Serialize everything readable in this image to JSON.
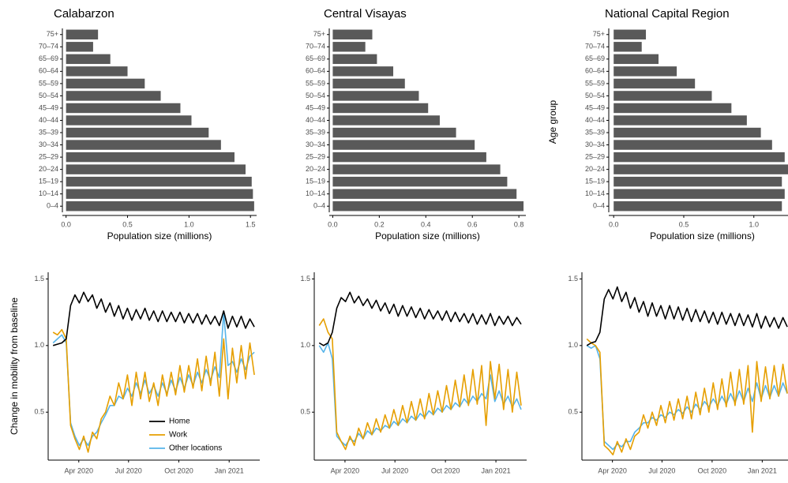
{
  "chart_data": [
    {
      "type": "bar",
      "orientation": "horizontal",
      "title": "Calabarzon",
      "xlabel": "Population size (millions)",
      "color": "#595959",
      "categories": [
        "0–4",
        "10–14",
        "15–19",
        "20–24",
        "25–29",
        "30–34",
        "35–39",
        "40–44",
        "45–49",
        "50–54",
        "55–59",
        "60–64",
        "65–69",
        "70–74",
        "75+"
      ],
      "values": [
        1.53,
        1.52,
        1.51,
        1.46,
        1.37,
        1.26,
        1.16,
        1.02,
        0.93,
        0.77,
        0.64,
        0.5,
        0.36,
        0.22,
        0.26
      ],
      "xlim": [
        -0.03,
        1.55
      ],
      "xticks": [
        {
          "value": 0,
          "label": "0.0"
        },
        0.5,
        {
          "value": 1,
          "label": "1.0"
        },
        1.5
      ]
    },
    {
      "type": "bar",
      "orientation": "horizontal",
      "title": "Central Visayas",
      "xlabel": "Population size (millions)",
      "color": "#595959",
      "categories": [
        "0–4",
        "10–14",
        "15–19",
        "20–24",
        "25–29",
        "30–34",
        "35–39",
        "40–44",
        "45–49",
        "50–54",
        "55–59",
        "60–64",
        "65–69",
        "70–74",
        "75+"
      ],
      "values": [
        0.82,
        0.79,
        0.75,
        0.72,
        0.66,
        0.61,
        0.53,
        0.46,
        0.41,
        0.37,
        0.31,
        0.26,
        0.19,
        0.14,
        0.17
      ],
      "xlim": [
        -0.015,
        0.83
      ],
      "xticks": [
        {
          "value": 0,
          "label": "0.0"
        },
        0.2,
        0.4,
        0.6,
        0.8
      ]
    },
    {
      "type": "bar",
      "orientation": "horizontal",
      "title": "National Capital Region",
      "xlabel": "Population size (millions)",
      "ylabel": "Age group",
      "color": "#595959",
      "categories": [
        "0–4",
        "10–14",
        "15–19",
        "20–24",
        "25–29",
        "30–34",
        "35–39",
        "40–44",
        "45–49",
        "50–54",
        "55–59",
        "60–64",
        "65–69",
        "70–74",
        "75+"
      ],
      "values": [
        1.2,
        1.22,
        1.2,
        1.25,
        1.22,
        1.13,
        1.05,
        0.95,
        0.84,
        0.7,
        0.58,
        0.45,
        0.32,
        0.2,
        0.23
      ],
      "xlim": [
        -0.035,
        1.3
      ],
      "xticks": [
        {
          "value": 0,
          "label": "0.0"
        },
        0.5,
        {
          "value": 1,
          "label": "1.0"
        }
      ]
    },
    {
      "type": "line",
      "ylabel": "Change in mobility from baseline",
      "legend": "bottom-right",
      "x": [
        -16,
        -8,
        0,
        8,
        16,
        24,
        32,
        40,
        48,
        56,
        64,
        72,
        80,
        88,
        96,
        104,
        112,
        120,
        128,
        136,
        144,
        152,
        160,
        168,
        176,
        184,
        192,
        200,
        208,
        216,
        224,
        232,
        240,
        248,
        256,
        264,
        272,
        280,
        288,
        296,
        304,
        312,
        320,
        328,
        336,
        344,
        352
      ],
      "xlim": [
        -25,
        362
      ],
      "xticks": [
        {
          "value": 31,
          "label": "Apr 2020"
        },
        {
          "value": 122,
          "label": "Jul 2020"
        },
        {
          "value": 214,
          "label": "Oct 2020"
        },
        {
          "value": 306,
          "label": "Jan 2021"
        }
      ],
      "ylim": [
        0.14,
        1.55
      ],
      "yticks": [
        0.5,
        {
          "value": 1,
          "label": "1.0"
        },
        1.5
      ],
      "series": [
        {
          "name": "Home",
          "color": "#000000",
          "values": [
            1.0,
            1.01,
            1.02,
            1.05,
            1.3,
            1.38,
            1.32,
            1.4,
            1.33,
            1.38,
            1.28,
            1.35,
            1.25,
            1.32,
            1.22,
            1.3,
            1.2,
            1.28,
            1.19,
            1.27,
            1.2,
            1.28,
            1.19,
            1.26,
            1.18,
            1.26,
            1.18,
            1.25,
            1.18,
            1.25,
            1.17,
            1.24,
            1.17,
            1.24,
            1.16,
            1.23,
            1.16,
            1.22,
            1.15,
            1.26,
            1.13,
            1.22,
            1.14,
            1.22,
            1.13,
            1.2,
            1.14
          ]
        },
        {
          "name": "Work",
          "color": "#E69F00",
          "values": [
            1.1,
            1.08,
            1.12,
            1.05,
            0.4,
            0.3,
            0.22,
            0.32,
            0.2,
            0.35,
            0.3,
            0.45,
            0.5,
            0.62,
            0.55,
            0.72,
            0.6,
            0.78,
            0.55,
            0.8,
            0.6,
            0.8,
            0.58,
            0.72,
            0.55,
            0.78,
            0.62,
            0.8,
            0.63,
            0.85,
            0.65,
            0.85,
            0.68,
            0.9,
            0.66,
            0.92,
            0.7,
            0.95,
            0.62,
            1.05,
            0.6,
            0.98,
            0.72,
            1.0,
            0.75,
            1.02,
            0.78
          ]
        },
        {
          "name": "Other locations",
          "color": "#56B4E9",
          "values": [
            1.02,
            1.05,
            1.08,
            1.02,
            0.42,
            0.32,
            0.25,
            0.3,
            0.25,
            0.32,
            0.35,
            0.42,
            0.48,
            0.55,
            0.55,
            0.62,
            0.6,
            0.68,
            0.62,
            0.72,
            0.64,
            0.74,
            0.64,
            0.7,
            0.62,
            0.72,
            0.64,
            0.74,
            0.66,
            0.76,
            0.68,
            0.78,
            0.7,
            0.8,
            0.72,
            0.82,
            0.74,
            0.84,
            0.76,
            1.25,
            0.85,
            0.88,
            0.8,
            0.9,
            0.82,
            0.92,
            0.95
          ]
        }
      ]
    },
    {
      "type": "line",
      "x": [
        -16,
        -8,
        0,
        8,
        16,
        24,
        32,
        40,
        48,
        56,
        64,
        72,
        80,
        88,
        96,
        104,
        112,
        120,
        128,
        136,
        144,
        152,
        160,
        168,
        176,
        184,
        192,
        200,
        208,
        216,
        224,
        232,
        240,
        248,
        256,
        264,
        272,
        280,
        288,
        296,
        304,
        312,
        320,
        328,
        336,
        344,
        352
      ],
      "xlim": [
        -25,
        362
      ],
      "xticks": [
        {
          "value": 31,
          "label": "Apr 2020"
        },
        {
          "value": 122,
          "label": "Jul 2020"
        },
        {
          "value": 214,
          "label": "Oct 2020"
        },
        {
          "value": 306,
          "label": "Jan 2021"
        }
      ],
      "ylim": [
        0.14,
        1.55
      ],
      "yticks": [
        0.5,
        {
          "value": 1,
          "label": "1.0"
        },
        1.5
      ],
      "series": [
        {
          "color": "#000000",
          "values": [
            1.02,
            1.0,
            1.02,
            1.1,
            1.28,
            1.36,
            1.33,
            1.4,
            1.32,
            1.37,
            1.3,
            1.35,
            1.28,
            1.34,
            1.26,
            1.32,
            1.24,
            1.31,
            1.22,
            1.3,
            1.22,
            1.29,
            1.21,
            1.28,
            1.2,
            1.27,
            1.2,
            1.26,
            1.19,
            1.26,
            1.18,
            1.25,
            1.18,
            1.24,
            1.17,
            1.24,
            1.16,
            1.23,
            1.16,
            1.24,
            1.15,
            1.22,
            1.16,
            1.22,
            1.15,
            1.21,
            1.16
          ]
        },
        {
          "color": "#E69F00",
          "values": [
            1.15,
            1.2,
            1.1,
            1.05,
            0.35,
            0.28,
            0.22,
            0.32,
            0.25,
            0.38,
            0.3,
            0.42,
            0.33,
            0.45,
            0.35,
            0.48,
            0.38,
            0.52,
            0.4,
            0.55,
            0.42,
            0.58,
            0.44,
            0.6,
            0.45,
            0.64,
            0.48,
            0.66,
            0.5,
            0.7,
            0.52,
            0.74,
            0.54,
            0.78,
            0.55,
            0.82,
            0.56,
            0.85,
            0.4,
            0.88,
            0.6,
            0.86,
            0.52,
            0.82,
            0.5,
            0.8,
            0.55
          ]
        },
        {
          "color": "#56B4E9",
          "values": [
            1.0,
            0.95,
            1.02,
            0.9,
            0.32,
            0.28,
            0.25,
            0.3,
            0.28,
            0.34,
            0.3,
            0.36,
            0.33,
            0.38,
            0.36,
            0.4,
            0.38,
            0.43,
            0.4,
            0.45,
            0.42,
            0.47,
            0.44,
            0.49,
            0.46,
            0.51,
            0.48,
            0.53,
            0.5,
            0.55,
            0.52,
            0.57,
            0.54,
            0.6,
            0.56,
            0.62,
            0.58,
            0.64,
            0.6,
            0.78,
            0.58,
            0.66,
            0.56,
            0.62,
            0.54,
            0.6,
            0.52
          ]
        }
      ]
    },
    {
      "type": "line",
      "x": [
        -16,
        -8,
        0,
        8,
        16,
        24,
        32,
        40,
        48,
        56,
        64,
        72,
        80,
        88,
        96,
        104,
        112,
        120,
        128,
        136,
        144,
        152,
        160,
        168,
        176,
        184,
        192,
        200,
        208,
        216,
        224,
        232,
        240,
        248,
        256,
        264,
        272,
        280,
        288,
        296,
        304,
        312,
        320,
        328,
        336,
        344,
        352
      ],
      "xlim": [
        -25,
        362
      ],
      "xticks": [
        {
          "value": 31,
          "label": "Apr 2020"
        },
        {
          "value": 122,
          "label": "Jul 2020"
        },
        {
          "value": 214,
          "label": "Oct 2020"
        },
        {
          "value": 306,
          "label": "Jan 2021"
        }
      ],
      "ylim": [
        0.14,
        1.55
      ],
      "yticks": [
        0.5,
        {
          "value": 1,
          "label": "1.0"
        },
        1.5
      ],
      "series": [
        {
          "color": "#000000",
          "values": [
            1.0,
            1.02,
            1.03,
            1.1,
            1.35,
            1.42,
            1.35,
            1.44,
            1.33,
            1.4,
            1.28,
            1.36,
            1.25,
            1.33,
            1.22,
            1.32,
            1.22,
            1.3,
            1.2,
            1.3,
            1.2,
            1.29,
            1.19,
            1.28,
            1.18,
            1.27,
            1.18,
            1.26,
            1.17,
            1.25,
            1.16,
            1.25,
            1.16,
            1.24,
            1.15,
            1.24,
            1.15,
            1.23,
            1.14,
            1.24,
            1.13,
            1.22,
            1.14,
            1.21,
            1.13,
            1.21,
            1.14
          ]
        },
        {
          "color": "#E69F00",
          "values": [
            1.05,
            1.02,
            1.0,
            0.95,
            0.25,
            0.22,
            0.18,
            0.28,
            0.2,
            0.3,
            0.22,
            0.32,
            0.35,
            0.48,
            0.38,
            0.5,
            0.4,
            0.55,
            0.42,
            0.58,
            0.44,
            0.6,
            0.45,
            0.62,
            0.45,
            0.65,
            0.48,
            0.68,
            0.5,
            0.72,
            0.52,
            0.75,
            0.54,
            0.8,
            0.55,
            0.82,
            0.56,
            0.85,
            0.35,
            0.88,
            0.58,
            0.84,
            0.6,
            0.85,
            0.62,
            0.86,
            0.64
          ]
        },
        {
          "color": "#56B4E9",
          "values": [
            1.0,
            0.98,
            1.0,
            0.9,
            0.28,
            0.25,
            0.22,
            0.26,
            0.24,
            0.28,
            0.28,
            0.35,
            0.38,
            0.42,
            0.42,
            0.46,
            0.44,
            0.48,
            0.46,
            0.5,
            0.48,
            0.52,
            0.49,
            0.54,
            0.5,
            0.56,
            0.52,
            0.58,
            0.54,
            0.6,
            0.55,
            0.62,
            0.56,
            0.64,
            0.57,
            0.66,
            0.58,
            0.68,
            0.58,
            0.72,
            0.6,
            0.7,
            0.61,
            0.7,
            0.62,
            0.72,
            0.64
          ]
        }
      ]
    }
  ]
}
